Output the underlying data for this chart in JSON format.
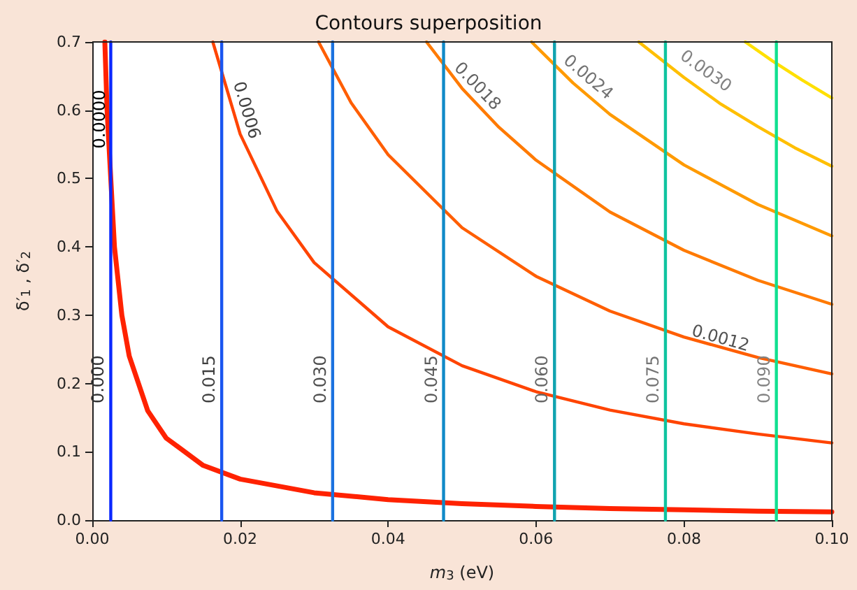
{
  "chart_data": {
    "type": "line",
    "title": "Contours superposition",
    "xlabel": "m$_{3}$ (eV)",
    "ylabel": "δ′$_{1}$ , δ′$_{2}$",
    "xlim": [
      0,
      0.1
    ],
    "xticks": [
      {
        "value": 0,
        "label": "0.00"
      },
      {
        "value": 0.02,
        "label": "0.02"
      },
      {
        "value": 0.04,
        "label": "0.04"
      },
      {
        "value": 0.06,
        "label": "0.06"
      },
      {
        "value": 0.08,
        "label": "0.08"
      },
      {
        "value": 0.1,
        "label": "0.10"
      }
    ],
    "ylim": [
      0,
      0.7
    ],
    "yticks": [
      {
        "value": 0,
        "label": "0.0"
      },
      {
        "value": 0.1,
        "label": "0.1"
      },
      {
        "value": 0.2,
        "label": "0.2"
      },
      {
        "value": 0.3,
        "label": "0.3"
      },
      {
        "value": 0.4,
        "label": "0.4"
      },
      {
        "value": 0.5,
        "label": "0.5"
      },
      {
        "value": 0.6,
        "label": "0.6"
      },
      {
        "value": 0.7,
        "label": "0.7"
      }
    ],
    "grid": false,
    "marker": "none",
    "line_style": "solid",
    "series": [
      {
        "color": "#ff2200",
        "x": [
          0.0017,
          0.002,
          0.003,
          0.004,
          0.005,
          0.0075,
          0.01,
          0.015,
          0.02,
          0.03,
          0.04,
          0.05,
          0.06,
          0.07,
          0.08,
          0.09,
          0.1
        ],
        "values": [
          0.7,
          0.6,
          0.4,
          0.3,
          0.24,
          0.16,
          0.12,
          0.08,
          0.06,
          0.04,
          0.03,
          0.024,
          0.02,
          0.017,
          0.015,
          0.013,
          0.012
        ]
      },
      {
        "color": "#ff4400",
        "x": [
          0.0163,
          0.02,
          0.025,
          0.03,
          0.04,
          0.05,
          0.06,
          0.07,
          0.08,
          0.09,
          0.1
        ],
        "values": [
          0.7,
          0.565,
          0.452,
          0.377,
          0.283,
          0.226,
          0.188,
          0.161,
          0.141,
          0.126,
          0.113
        ]
      },
      {
        "color": "#ff5e00",
        "x": [
          0.0306,
          0.035,
          0.04,
          0.05,
          0.06,
          0.07,
          0.08,
          0.09,
          0.1
        ],
        "values": [
          0.7,
          0.611,
          0.535,
          0.428,
          0.357,
          0.306,
          0.268,
          0.238,
          0.214
        ]
      },
      {
        "color": "#ff7a00",
        "x": [
          0.0452,
          0.05,
          0.055,
          0.06,
          0.07,
          0.08,
          0.09,
          0.1
        ],
        "values": [
          0.7,
          0.632,
          0.575,
          0.527,
          0.451,
          0.395,
          0.351,
          0.316
        ]
      },
      {
        "color": "#ff9a00",
        "x": [
          0.0594,
          0.065,
          0.07,
          0.08,
          0.09,
          0.1
        ],
        "values": [
          0.7,
          0.64,
          0.594,
          0.52,
          0.462,
          0.416
        ]
      },
      {
        "color": "#ffbf00",
        "x": [
          0.0739,
          0.08,
          0.085,
          0.09,
          0.095,
          0.1
        ],
        "values": [
          0.7,
          0.648,
          0.609,
          0.576,
          0.545,
          0.518
        ]
      },
      {
        "color": "#ffe000",
        "x": [
          0.0883,
          0.092,
          0.096,
          0.1
        ],
        "values": [
          0.7,
          0.672,
          0.644,
          0.618
        ]
      },
      {
        "color": "#0a28ff",
        "x": [
          0.0025,
          0.0025
        ],
        "values": [
          0,
          0.7
        ]
      },
      {
        "color": "#1a55f0",
        "x": [
          0.0175,
          0.0175
        ],
        "values": [
          0,
          0.7
        ]
      },
      {
        "color": "#1a72e0",
        "x": [
          0.0325,
          0.0325
        ],
        "values": [
          0,
          0.7
        ]
      },
      {
        "color": "#108ac8",
        "x": [
          0.0475,
          0.0475
        ],
        "values": [
          0,
          0.7
        ]
      },
      {
        "color": "#10a3b0",
        "x": [
          0.0625,
          0.0625
        ],
        "values": [
          0,
          0.7
        ]
      },
      {
        "color": "#10c4a0",
        "x": [
          0.0775,
          0.0775
        ],
        "values": [
          0,
          0.7
        ]
      },
      {
        "color": "#10e090",
        "x": [
          0.0925,
          0.0925
        ],
        "values": [
          0,
          0.7
        ]
      }
    ],
    "annotations": [
      {
        "text": "0.0000",
        "x": 0.0026,
        "y": 0.587
      },
      {
        "text": "0.0006",
        "x": 0.0193,
        "y": 0.595
      },
      {
        "text": "0.0012",
        "x": 0.0845,
        "y": 0.249
      },
      {
        "text": "0.0018",
        "x": 0.0509,
        "y": 0.623
      },
      {
        "text": "0.0024",
        "x": 0.066,
        "y": 0.635
      },
      {
        "text": "0.0030",
        "x": 0.082,
        "y": 0.643
      },
      {
        "text": "0.000",
        "x": 0.0025,
        "y": 0.206
      },
      {
        "text": "0.015",
        "x": 0.0175,
        "y": 0.206
      },
      {
        "text": "0.030",
        "x": 0.0325,
        "y": 0.206
      },
      {
        "text": "0.045",
        "x": 0.0475,
        "y": 0.206
      },
      {
        "text": "0.060",
        "x": 0.0625,
        "y": 0.206
      },
      {
        "text": "0.075",
        "x": 0.0775,
        "y": 0.206
      },
      {
        "text": "0.090",
        "x": 0.0925,
        "y": 0.206
      }
    ]
  }
}
